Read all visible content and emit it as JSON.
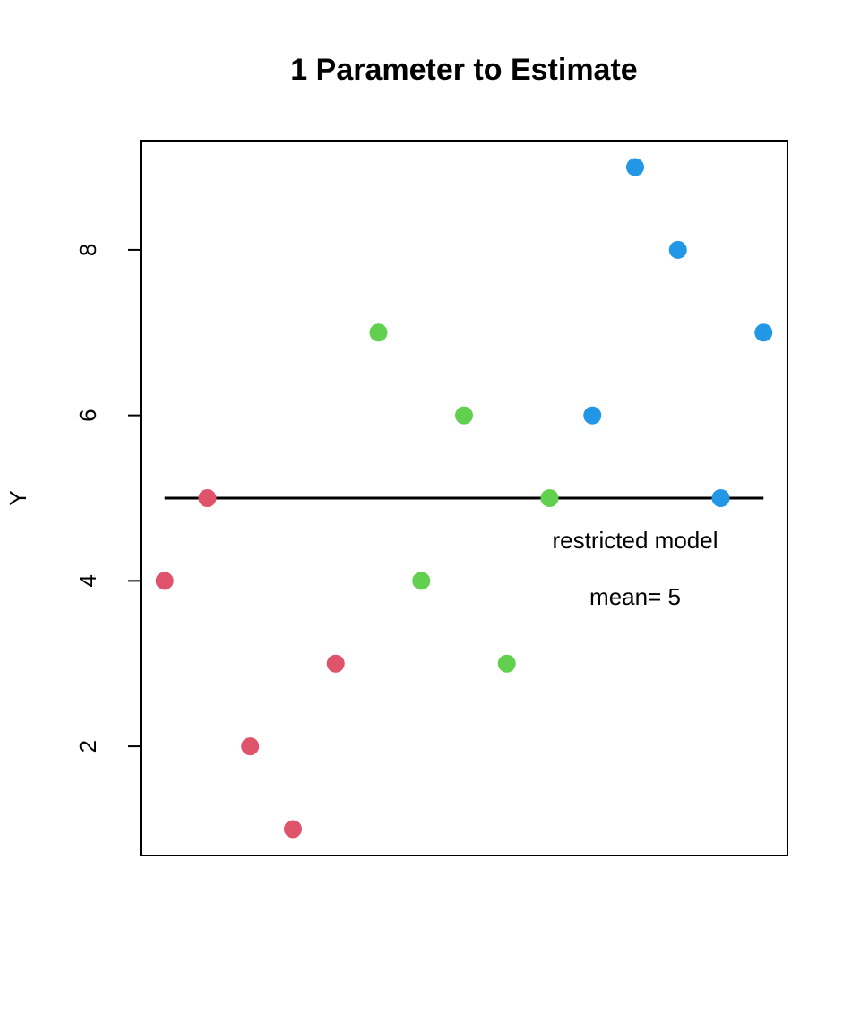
{
  "chart_data": {
    "type": "scatter",
    "title": "1 Parameter to Estimate",
    "y_label": "Y",
    "series": [
      {
        "color": "#DF536B",
        "x": [
          1,
          2,
          3,
          4,
          5
        ],
        "values": [
          4,
          5,
          2,
          1,
          3
        ]
      },
      {
        "color": "#61D04F",
        "x": [
          6,
          7,
          8,
          9,
          10
        ],
        "values": [
          7,
          4,
          6,
          3,
          5
        ]
      },
      {
        "color": "#2297E6",
        "x": [
          11,
          12,
          13,
          14,
          15
        ],
        "values": [
          6,
          9,
          8,
          5,
          7
        ]
      }
    ],
    "mean_line": {
      "value": 5,
      "x": [
        1,
        15
      ],
      "color": "#000000"
    },
    "annotations": [
      "restricted model",
      "mean= 5"
    ],
    "xlim": [
      0.44,
      15.56
    ],
    "ylim": [
      0.68,
      9.32
    ],
    "yticks": [
      2,
      4,
      6,
      8
    ],
    "grid": false
  }
}
